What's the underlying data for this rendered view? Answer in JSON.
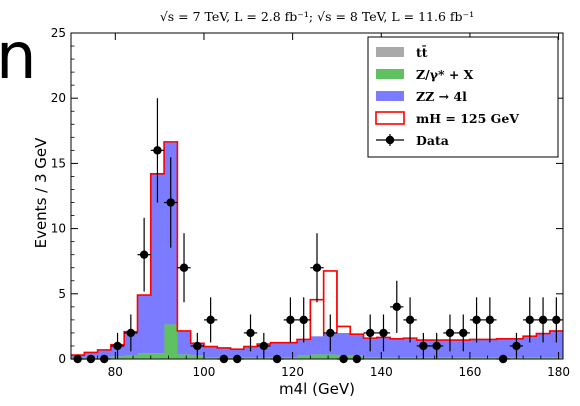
{
  "page": {
    "left_fragment": "n"
  },
  "chart_data": {
    "type": "bar",
    "title": "√s = 7 TeV, L = 2.8 fb⁻¹; √s = 8 TeV, L = 11.6 fb⁻¹",
    "xlabel": "m4l (GeV)",
    "ylabel": "Events / 3 GeV",
    "xlim": [
      70,
      181
    ],
    "ylim": [
      0,
      25
    ],
    "xticks": [
      80,
      100,
      120,
      140,
      160,
      180
    ],
    "yticks": [
      0,
      5,
      10,
      15,
      20,
      25
    ],
    "bin_edges": [
      70,
      73,
      76,
      79,
      82,
      85,
      88,
      91,
      94,
      97,
      100,
      103,
      106,
      109,
      112,
      115,
      118,
      121,
      124,
      127,
      130,
      133,
      136,
      139,
      142,
      145,
      148,
      151,
      154,
      157,
      160,
      163,
      166,
      169,
      172,
      175,
      178,
      181
    ],
    "stack": [
      {
        "name": "tt̄",
        "color": "#a9a9a9",
        "values": [
          0.05,
          0.05,
          0.05,
          0.05,
          0.05,
          0.05,
          0.05,
          0.05,
          0.05,
          0.05,
          0.05,
          0.05,
          0.05,
          0.05,
          0.05,
          0.05,
          0.05,
          0.05,
          0.05,
          0.05,
          0.05,
          0.05,
          0.05,
          0.05,
          0.05,
          0.05,
          0.05,
          0.05,
          0.05,
          0.05,
          0.05,
          0.05,
          0.05,
          0.05,
          0.05,
          0.05,
          0.05
        ]
      },
      {
        "name": "Z/γ* + X",
        "color": "#5fc15f",
        "values": [
          0.1,
          0.1,
          0.1,
          0.15,
          0.2,
          0.4,
          0.4,
          2.6,
          0.3,
          0.2,
          0.1,
          0.1,
          0.1,
          0.1,
          0.1,
          0.1,
          0.1,
          0.2,
          0.3,
          0.3,
          0.2,
          0.2,
          0.1,
          0.1,
          0.1,
          0.1,
          0.1,
          0.1,
          0.1,
          0.1,
          0.1,
          0.1,
          0.1,
          0.1,
          0.1,
          0.1,
          0.1
        ]
      },
      {
        "name": "ZZ → 4l",
        "color": "#7b7bff",
        "values": [
          0.15,
          0.35,
          0.55,
          0.9,
          1.85,
          4.45,
          13.75,
          14.0,
          1.8,
          0.95,
          0.8,
          0.7,
          0.6,
          0.8,
          1.0,
          1.1,
          1.1,
          1.2,
          1.4,
          1.6,
          1.75,
          1.65,
          1.45,
          1.5,
          1.4,
          1.45,
          1.3,
          1.3,
          1.3,
          1.3,
          1.35,
          1.35,
          1.4,
          1.4,
          1.6,
          1.8,
          2.0
        ]
      },
      {
        "name": "mH = 125 GeV",
        "color": "#ffffff",
        "edge": "#ff0000",
        "values": [
          0,
          0,
          0,
          0,
          0,
          0,
          0,
          0,
          0,
          0,
          0,
          0,
          0,
          0,
          0,
          0,
          0,
          0.05,
          2.8,
          4.8,
          0.5,
          0,
          0,
          0,
          0,
          0,
          0,
          0,
          0,
          0,
          0,
          0,
          0,
          0,
          0,
          0,
          0
        ]
      }
    ],
    "data": {
      "name": "Data",
      "x": [
        71.5,
        74.5,
        77.5,
        80.5,
        83.5,
        86.5,
        89.5,
        92.5,
        95.5,
        98.5,
        101.5,
        104.5,
        107.5,
        110.5,
        113.5,
        116.5,
        119.5,
        122.5,
        125.5,
        128.5,
        131.5,
        134.5,
        137.5,
        140.5,
        143.5,
        146.5,
        149.5,
        152.5,
        155.5,
        158.5,
        161.5,
        164.5,
        167.5,
        170.5,
        173.5,
        176.5,
        179.5
      ],
      "y": [
        0,
        0,
        0,
        1,
        2,
        8,
        16,
        12,
        7,
        1,
        3,
        0,
        0,
        2,
        1,
        0,
        3,
        3,
        7,
        2,
        0,
        0,
        2,
        2,
        4,
        3,
        1,
        1,
        2,
        2,
        3,
        3,
        0,
        1,
        3,
        3,
        3
      ]
    },
    "legend": {
      "placement": "top-right",
      "entries": [
        {
          "label": "tt̄",
          "swatch": "#a9a9a9",
          "kind": "fill"
        },
        {
          "label": "Z/γ* + X",
          "swatch": "#5fc15f",
          "kind": "fill"
        },
        {
          "label": "ZZ → 4l",
          "swatch": "#7b7bff",
          "kind": "fill"
        },
        {
          "label": "mH = 125 GeV",
          "swatch": "#ff0000",
          "kind": "outline"
        },
        {
          "label": "Data",
          "swatch": "#000000",
          "kind": "marker"
        }
      ]
    }
  }
}
